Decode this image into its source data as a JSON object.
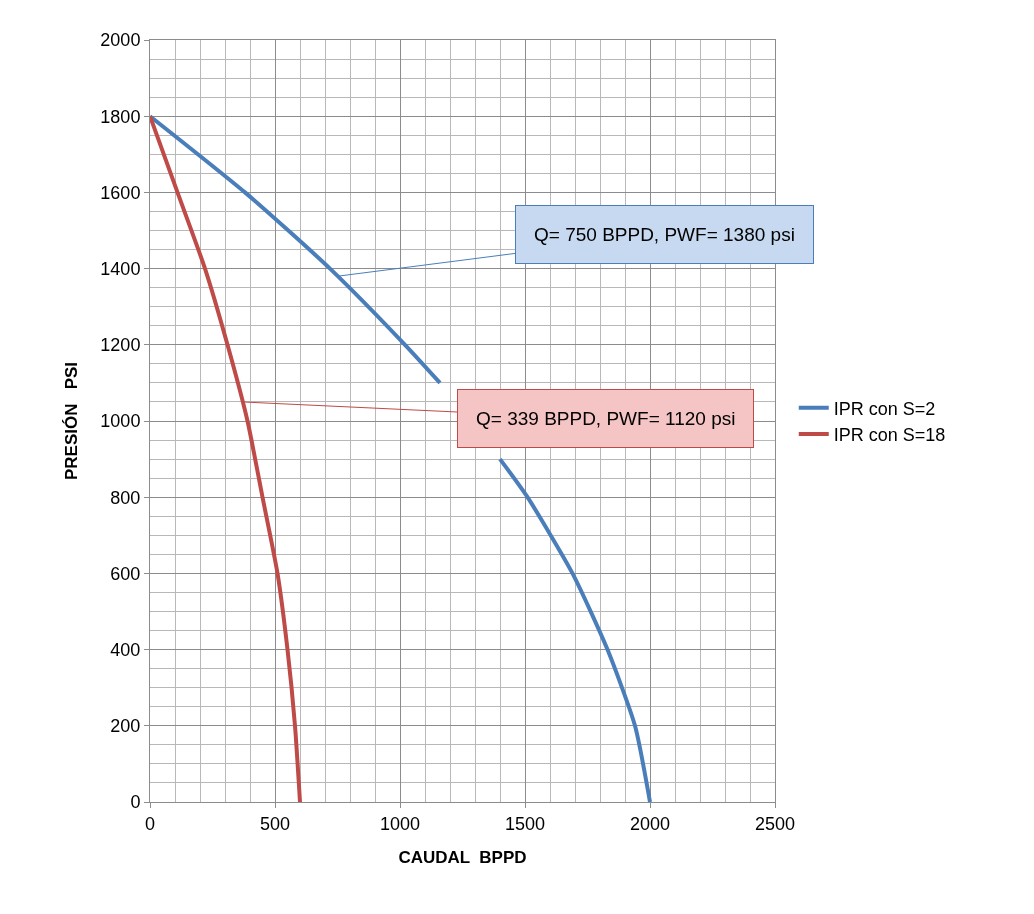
{
  "chart_data": {
    "type": "line",
    "xlabel": "CAUDAL  BPPD",
    "ylabel": "PRESIÓN   PSI",
    "xlim": [
      0,
      2500
    ],
    "xticks": [
      0,
      500,
      1000,
      1500,
      2000,
      2500
    ],
    "ylim": [
      0,
      2000
    ],
    "yticks": [
      0,
      200,
      400,
      600,
      800,
      1000,
      1200,
      1400,
      1600,
      1800,
      2000
    ],
    "grid": true,
    "legend": "right",
    "marker": "none",
    "line_style": "solid",
    "series": [
      {
        "name": "IPR con S=2",
        "color": "#4a7ebb",
        "x": [
          0,
          380,
          720,
          1020,
          1160,
          1280,
          1400,
          1510,
          1690,
          1830,
          1940,
          2000
        ],
        "values": [
          1800,
          1600,
          1400,
          1200,
          1100,
          null,
          900,
          800,
          600,
          400,
          200,
          0
        ]
      },
      {
        "name": "IPR con S=18",
        "color": "#be4b48",
        "x": [
          0,
          110,
          220,
          310,
          390,
          450,
          510,
          550,
          580,
          600
        ],
        "values": [
          1800,
          1600,
          1400,
          1200,
          1000,
          800,
          600,
          400,
          200,
          0
        ]
      }
    ],
    "annotations": [
      {
        "text": "Q= 750 BPPD, PWF= 1380 psi",
        "x": 750,
        "y": 1380
      },
      {
        "text": "Q= 339 BPPD, PWF= 1120 psi",
        "x": 370,
        "y": 1050
      }
    ]
  }
}
